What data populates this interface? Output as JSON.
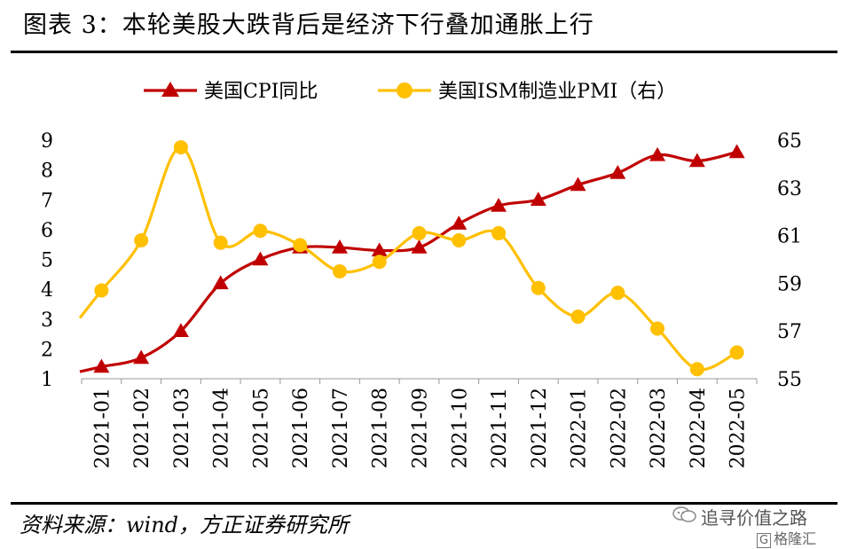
{
  "header": {
    "title": "图表 3：本轮美股大跌背后是经济下行叠加通胀上行"
  },
  "footer": {
    "source": "资料来源：wind，方正证券研究所"
  },
  "watermark": {
    "text": "追寻价值之路",
    "brand_box": "G",
    "brand": "格隆汇"
  },
  "chart_data": {
    "type": "line",
    "categories": [
      "2021-01",
      "2021-02",
      "2021-03",
      "2021-04",
      "2021-05",
      "2021-06",
      "2021-07",
      "2021-08",
      "2021-09",
      "2021-10",
      "2021-11",
      "2021-12",
      "2022-01",
      "2022-02",
      "2022-03",
      "2022-04",
      "2022-05"
    ],
    "series": [
      {
        "name": "美国CPI同比",
        "axis": "left",
        "color": "#C00000",
        "marker": "triangle",
        "values": [
          1.4,
          1.7,
          2.6,
          4.2,
          5.0,
          5.4,
          5.4,
          5.3,
          5.4,
          6.2,
          6.8,
          7.0,
          7.5,
          7.9,
          8.5,
          8.3,
          8.6
        ]
      },
      {
        "name": "美国ISM制造业PMI（右）",
        "axis": "right",
        "color": "#FFC000",
        "marker": "circle",
        "values": [
          58.7,
          60.8,
          64.7,
          60.7,
          61.2,
          60.6,
          59.5,
          59.9,
          61.1,
          60.8,
          61.1,
          58.8,
          57.6,
          58.6,
          57.1,
          55.4,
          56.1
        ]
      }
    ],
    "y_left": {
      "ticks": [
        "1",
        "2",
        "3",
        "4",
        "5",
        "6",
        "7",
        "8",
        "9"
      ],
      "ylim": [
        1,
        9
      ]
    },
    "y_right": {
      "ticks": [
        "55",
        "57",
        "59",
        "61",
        "63",
        "65"
      ],
      "ylim": [
        55,
        65
      ]
    },
    "legend": "top",
    "grid": false
  }
}
